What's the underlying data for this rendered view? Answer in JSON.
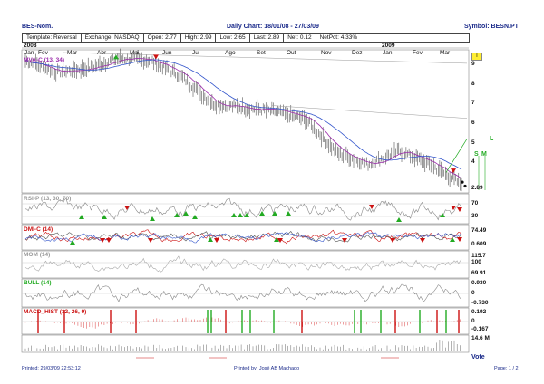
{
  "header": {
    "name": "BES-Nom.",
    "chart_title": "Daily Chart: 18/01/08 - 27/03/09",
    "symbol": "Symbol: BESN.PT"
  },
  "info": {
    "template": "Template: Reversal",
    "exchange": "Exchange: NASDAQ",
    "open": "Open: 2.77",
    "high": "High: 2.99",
    "low": "Low: 2.65",
    "last": "Last: 2.89",
    "net": "Net: 0.12",
    "netpct": "NetPct: 4.33%"
  },
  "timeline": {
    "year1": "2008",
    "year2": "2009",
    "months": [
      "Jan",
      "Fev",
      "Mar",
      "Abr",
      "Mai",
      "Jun",
      "Jul",
      "Ago",
      "Set",
      "Out",
      "Nov",
      "Dez",
      "Jan",
      "Fev",
      "Mar"
    ]
  },
  "panels": {
    "price": {
      "label": "MVA-C (13, 34)",
      "ticks": [
        "9",
        "8",
        "7",
        "6",
        "5",
        "4",
        "3"
      ],
      "last": "2.89",
      "tag": "T",
      "signals": [
        "S",
        "M",
        "L"
      ]
    },
    "rsi": {
      "label": "RSI-P (13, 30, 70)",
      "ticks": [
        "70",
        "30"
      ]
    },
    "dmi": {
      "label": "DMI-C (14)",
      "ticks": [
        "74.49",
        "0.609"
      ]
    },
    "mom": {
      "label": "MOM (14)",
      "ticks": [
        "115.7",
        "100",
        "69.91"
      ]
    },
    "bull": {
      "label": "BULL (14)",
      "ticks": [
        "0.930",
        "0",
        "-0.730"
      ]
    },
    "macd": {
      "label": "MACD_HIST (12, 26, 9)",
      "ticks": [
        "0.192",
        "0",
        "-0.167"
      ]
    },
    "volume": {
      "ticks": [
        "14.6 M"
      ]
    }
  },
  "footer": {
    "printed": "Printed: 29/03/09 22:53:12",
    "by": "Printed by: José AB Machado",
    "page": "Page: 1 / 2",
    "vote": "Vote"
  },
  "colors": {
    "up": "#22aa22",
    "down": "#cc1111",
    "ma_fast": "#9a2aaa",
    "ma_slow": "#3355cc",
    "text": "#1a2a8a",
    "line": "#555555"
  },
  "chart_data": {
    "type": "line",
    "title": "Daily Chart: 18/01/08 - 27/03/09",
    "x": [
      "2008-01",
      "2008-02",
      "2008-03",
      "2008-04",
      "2008-05",
      "2008-06",
      "2008-07",
      "2008-08",
      "2008-09",
      "2008-10",
      "2008-11",
      "2008-12",
      "2009-01",
      "2009-02",
      "2009-03"
    ],
    "series": [
      {
        "name": "",
        "values": [
          9.2,
          8.6,
          8.8,
          9.3,
          9.2,
          8.4,
          7.0,
          6.8,
          6.6,
          6.2,
          4.5,
          3.9,
          4.6,
          3.9,
          2.89
        ]
      }
    ],
    "ylim": [
      2.5,
      9.6
    ],
    "grid": false
  }
}
